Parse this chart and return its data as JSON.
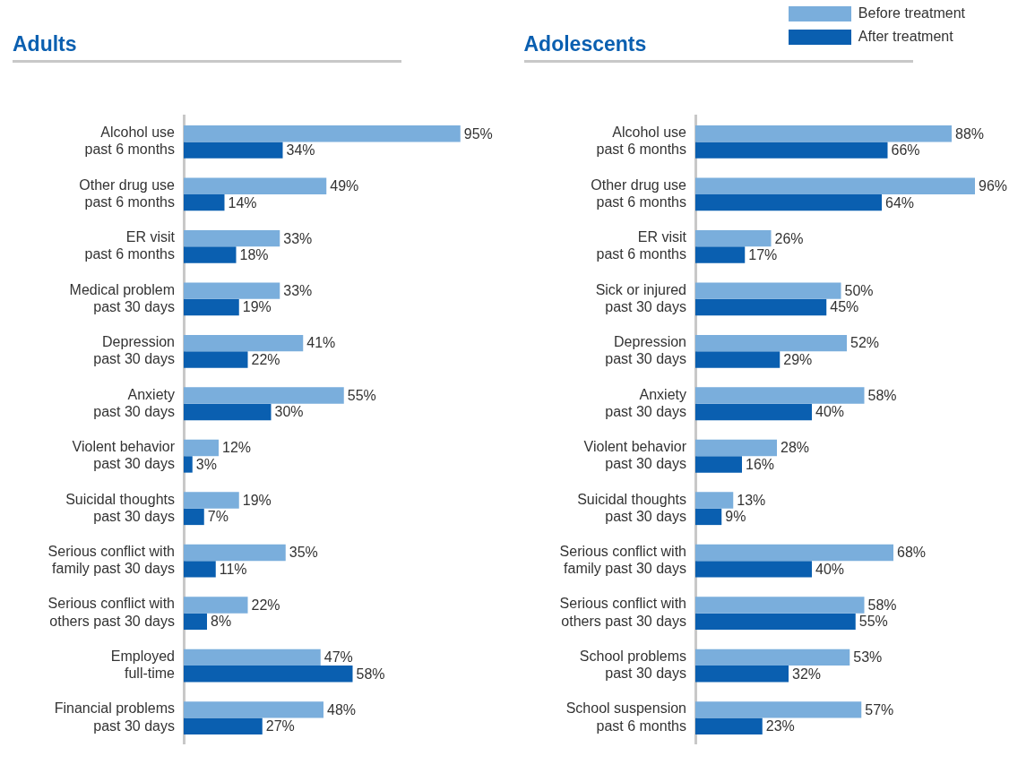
{
  "chart_data": [
    {
      "type": "bar",
      "orientation": "horizontal",
      "title": "Adults",
      "legend": false,
      "categories": [
        "Alcohol use\npast 6 months",
        "Other drug use\npast 6 months",
        "ER visit\npast 6 months",
        "Medical problem\npast 30 days",
        "Depression\npast 30 days",
        "Anxiety\npast 30 days",
        "Violent behavior\npast 30 days",
        "Suicidal thoughts\npast 30 days",
        "Serious conflict with\nfamily past 30 days",
        "Serious conflict with\nothers past 30 days",
        "Employed\nfull-time",
        "Financial problems\npast 30 days"
      ],
      "series": [
        {
          "color": "#7aaedc",
          "values": [
            95,
            49,
            33,
            33,
            41,
            55,
            12,
            19,
            35,
            22,
            47,
            48
          ],
          "value_labels": [
            "95%",
            "49%",
            "33%",
            "33%",
            "41%",
            "55%",
            "12%",
            "19%",
            "35%",
            "22%",
            "47%",
            "48%"
          ]
        },
        {
          "color": "#0a5fb0",
          "values": [
            34,
            14,
            18,
            19,
            22,
            30,
            3,
            7,
            11,
            8,
            58,
            27
          ],
          "value_labels": [
            "34%",
            "14%",
            "18%",
            "19%",
            "22%",
            "30%",
            "3%",
            "7%",
            "11%",
            "8%",
            "58%",
            "27%"
          ]
        }
      ]
    },
    {
      "type": "bar",
      "orientation": "horizontal",
      "title": "Adolescents",
      "legend": "top right",
      "categories": [
        "Alcohol use\npast 6 months",
        "Other drug use\npast 6 months",
        "ER visit\npast 6 months",
        "Sick or injured\npast 30 days",
        "Depression\npast 30 days",
        "Anxiety\npast 30 days",
        "Violent behavior\npast 30 days",
        "Suicidal thoughts\npast 30 days",
        "Serious conflict with\nfamily past 30 days",
        "Serious conflict with\nothers past 30 days",
        "School problems\npast 30 days",
        "School suspension\npast 6 months"
      ],
      "series": [
        {
          "name": "Before treatment",
          "color": "#7aaedc",
          "values": [
            88,
            96,
            26,
            50,
            52,
            58,
            28,
            13,
            68,
            58,
            53,
            57
          ],
          "value_labels": [
            "88%",
            "96%",
            "26%",
            "50%",
            "52%",
            "58%",
            "28%",
            "13%",
            "68%",
            "58%",
            "53%",
            "57%"
          ]
        },
        {
          "name": "After treatment",
          "color": "#0a5fb0",
          "values": [
            66,
            64,
            17,
            45,
            29,
            40,
            16,
            9,
            40,
            55,
            32,
            23
          ],
          "value_labels": [
            "66%",
            "64%",
            "17%",
            "45%",
            "29%",
            "40%",
            "16%",
            "9%",
            "40%",
            "55%",
            "32%",
            "23%"
          ]
        }
      ]
    }
  ]
}
